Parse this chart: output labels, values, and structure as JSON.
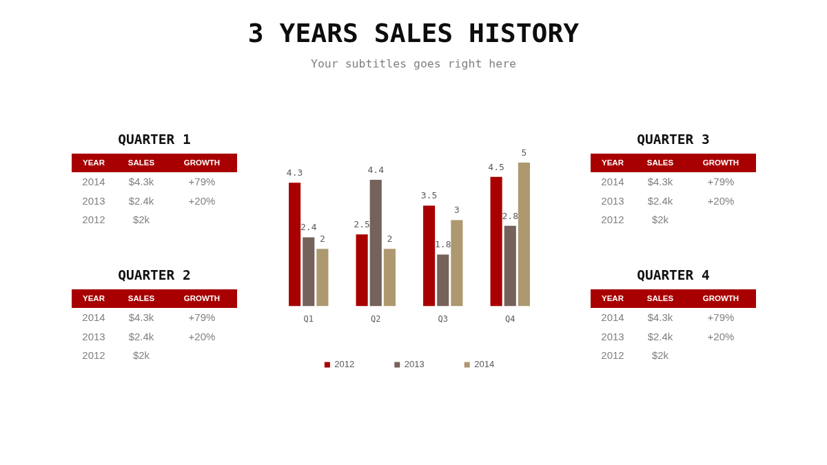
{
  "chart_data": [
    {
      "type": "bar",
      "title": "3 YEARS SALES HISTORY",
      "subtitle": "Your subtitles goes right here",
      "categories": [
        "Q1",
        "Q2",
        "Q3",
        "Q4"
      ],
      "series": [
        {
          "name": "2012",
          "color": "#a80000",
          "values": [
            4.3,
            2.5,
            3.5,
            4.5
          ]
        },
        {
          "name": "2013",
          "color": "#75625a",
          "values": [
            2.4,
            4.4,
            1.8,
            2.8
          ]
        },
        {
          "name": "2014",
          "color": "#ad9870",
          "values": [
            2,
            2,
            3,
            5
          ]
        }
      ],
      "data_labels": true,
      "legend": "bottom",
      "tick_labels": "x"
    },
    {
      "type": "other",
      "title": "QUARTER 1",
      "color": "#a80000",
      "annotations": [
        "YEAR",
        "SALES",
        "GROWTH",
        "2014",
        "$4.3k",
        "+79%",
        "2013",
        "$2.4k",
        "+20%",
        "2012",
        "$2k"
      ]
    },
    {
      "type": "other",
      "title": "QUARTER 2",
      "color": "#a80000",
      "annotations": [
        "YEAR",
        "SALES",
        "GROWTH",
        "2014",
        "$4.3k",
        "+79%",
        "2013",
        "$2.4k",
        "+20%",
        "2012",
        "$2k"
      ]
    },
    {
      "type": "other",
      "title": "QUARTER 3",
      "color": "#a80000",
      "annotations": [
        "YEAR",
        "SALES",
        "GROWTH",
        "2014",
        "$4.3k",
        "+79%",
        "2013",
        "$2.4k",
        "+20%",
        "2012",
        "$2k"
      ]
    },
    {
      "type": "other",
      "title": "QUARTER 4",
      "color": "#a80000",
      "annotations": [
        "YEAR",
        "SALES",
        "GROWTH",
        "2014",
        "$4.3k",
        "+79%",
        "2013",
        "$2.4k",
        "+20%",
        "2012",
        "$2k"
      ]
    }
  ]
}
